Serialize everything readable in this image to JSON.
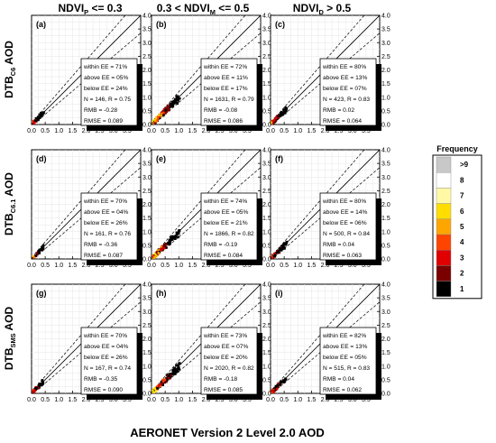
{
  "figure": {
    "column_titles": [
      {
        "main": "NDVI",
        "sub": "P",
        "rest": " <= 0.3"
      },
      {
        "main": "0.3 < NDVI",
        "sub": "M",
        "rest": " <= 0.5"
      },
      {
        "main": "NDVI",
        "sub": "D",
        "rest": " > 0.5"
      }
    ],
    "row_labels": [
      {
        "main": "DTB",
        "sub": "C6",
        "rest": " AOD"
      },
      {
        "main": "DTB",
        "sub": "C6.1",
        "rest": " AOD"
      },
      {
        "main": "DTB",
        "sub": "SMS",
        "rest": " AOD"
      }
    ],
    "xlabel": "AERONET Version 2 Level 2.0 AOD",
    "axis": {
      "xlim": [
        0,
        4.0
      ],
      "ylim": [
        0,
        4.0
      ],
      "xticks": [
        "0.0",
        "0.5",
        "1.0",
        "1.5",
        "2.0",
        "2.5",
        "3.0",
        "3.5"
      ],
      "yticks": [
        "0.0",
        "0.5",
        "1.0",
        "1.5",
        "2.0",
        "2.5",
        "3.0",
        "3.5",
        "4.0"
      ]
    },
    "colorbar": {
      "title": "Frequency",
      "labels": [
        ">9",
        "8",
        "7",
        "6",
        "5",
        "4",
        "3",
        "2",
        "1"
      ],
      "colors": [
        "#c8c8c8",
        "#ffffff",
        "#fff9a6",
        "#ffdd00",
        "#ffa500",
        "#ff4400",
        "#e00000",
        "#7a0000",
        "#000000"
      ]
    }
  },
  "chart_data": [
    {
      "type": "scatter",
      "panel": "(a)",
      "stats": [
        "within EE = 71%",
        "above EE = 05%",
        "below EE = 24%",
        "N = 146, R = 0.75",
        "RMB = -0.28",
        "RMSE = 0.089"
      ],
      "spread": 0.45
    },
    {
      "type": "scatter",
      "panel": "(b)",
      "stats": [
        "within EE = 72%",
        "above EE = 11%",
        "below EE = 17%",
        "N = 1631, R = 0.79",
        "RMB = -0.08",
        "RMSE = 0.086"
      ],
      "spread": 1.05
    },
    {
      "type": "scatter",
      "panel": "(c)",
      "stats": [
        "within EE = 80%",
        "above EE = 13%",
        "below EE = 07%",
        "N = 423, R = 0.83",
        "RMB = 0.02",
        "RMSE = 0.064"
      ],
      "spread": 0.6
    },
    {
      "type": "scatter",
      "panel": "(d)",
      "stats": [
        "within EE = 70%",
        "above EE = 04%",
        "below EE = 26%",
        "N = 161, R = 0.76",
        "RMB = -0.36",
        "RMSE = 0.087"
      ],
      "spread": 0.45
    },
    {
      "type": "scatter",
      "panel": "(e)",
      "stats": [
        "within EE = 74%",
        "above EE = 05%",
        "below EE = 21%",
        "N = 1866, R = 0.82",
        "RMB = -0.19",
        "RMSE = 0.084"
      ],
      "spread": 1.05
    },
    {
      "type": "scatter",
      "panel": "(f)",
      "stats": [
        "within EE = 80%",
        "above EE = 14%",
        "below EE = 06%",
        "N = 500, R = 0.84",
        "RMB = 0.04",
        "RMSE = 0.063"
      ],
      "spread": 0.6
    },
    {
      "type": "scatter",
      "panel": "(g)",
      "stats": [
        "within EE = 70%",
        "above EE = 04%",
        "below EE = 26%",
        "N = 167, R = 0.74",
        "RMB = -0.35",
        "RMSE = 0.090"
      ],
      "spread": 0.45
    },
    {
      "type": "scatter",
      "panel": "(h)",
      "stats": [
        "within EE = 73%",
        "above EE = 07%",
        "below EE = 20%",
        "N = 2020, R = 0.82",
        "RMB = -0.18",
        "RMSE = 0.085"
      ],
      "spread": 1.05
    },
    {
      "type": "scatter",
      "panel": "(i)",
      "stats": [
        "within EE = 82%",
        "above EE = 13%",
        "below EE = 05%",
        "N = 515, R = 0.83",
        "RMB = 0.04",
        "RMSE = 0.062"
      ],
      "spread": 0.6
    }
  ]
}
